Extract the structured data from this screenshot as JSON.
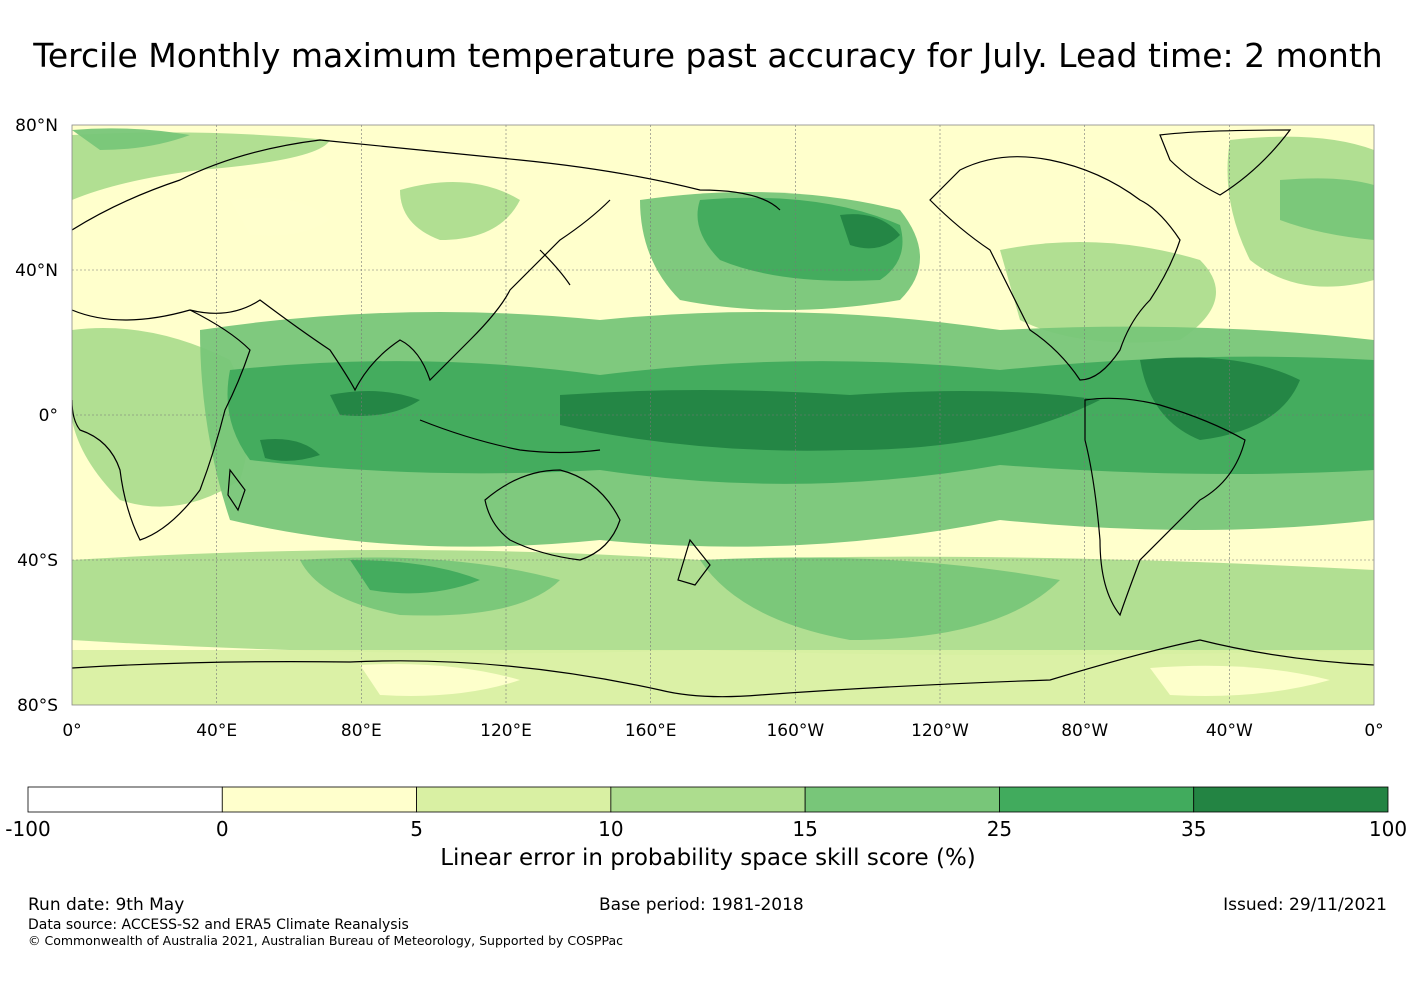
{
  "title": "Tercile Monthly maximum temperature past accuracy for July. Lead time: 2 month",
  "map": {
    "projection": "equirectangular, Pacific-centred (0° to 0° through 180°)",
    "lat_labels": [
      "80°N",
      "40°N",
      "0°",
      "40°S",
      "80°S"
    ],
    "lon_labels": [
      "0°",
      "40°E",
      "80°E",
      "120°E",
      "160°E",
      "160°W",
      "120°W",
      "80°W",
      "40°W",
      "0°"
    ],
    "gridlines": true,
    "coastline_color": "#000000"
  },
  "colorbar": {
    "title": "Linear error in probability space skill score (%)",
    "tick_labels": [
      "-100",
      "0",
      "5",
      "10",
      "15",
      "25",
      "35",
      "100"
    ],
    "bins": [
      {
        "from": -100,
        "to": 0,
        "color": "#ffffff"
      },
      {
        "from": 0,
        "to": 5,
        "color": "#ffffcc"
      },
      {
        "from": 5,
        "to": 10,
        "color": "#d9f0a3"
      },
      {
        "from": 10,
        "to": 15,
        "color": "#addd8e"
      },
      {
        "from": 15,
        "to": 25,
        "color": "#78c679"
      },
      {
        "from": 25,
        "to": 35,
        "color": "#41ab5d"
      },
      {
        "from": 35,
        "to": 100,
        "color": "#238443"
      }
    ]
  },
  "footer": {
    "run_date": "Run date: 9th May",
    "base_period": "Base period: 1981-2018",
    "issued": "Issued: 29/11/2021",
    "data_source": "Data source: ACCESS-S2 and ERA5 Climate Reanalysis",
    "copyright": "© Commonwealth of Australia 2021, Australian Bureau of Meteorology, Supported by COSPPac"
  }
}
